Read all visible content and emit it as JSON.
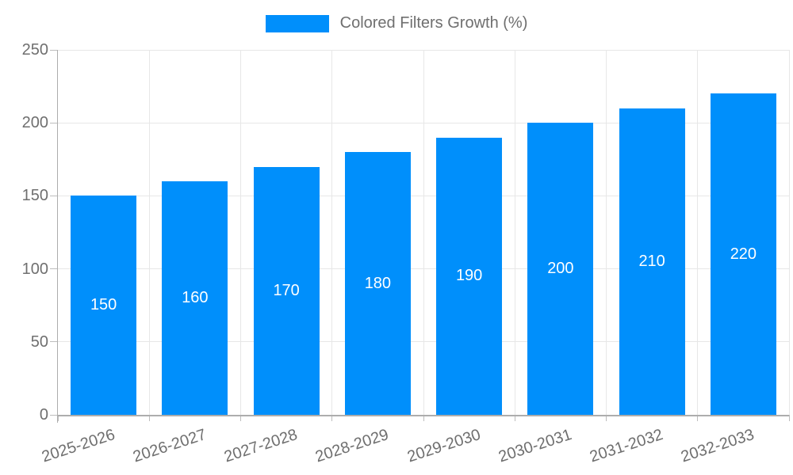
{
  "legend": {
    "label": "Colored Filters Growth (%)"
  },
  "colors": {
    "bar": "#008FFB",
    "grid": "#e7e7e7",
    "axis": "#adadad",
    "tick": "#bdbdbd",
    "axis_text": "#6f6f6f",
    "data_label_text": "#ffffff"
  },
  "chart_data": {
    "type": "bar",
    "title": "",
    "xlabel": "",
    "ylabel": "",
    "series_name": "Colored Filters Growth (%)",
    "categories": [
      "2025-2026",
      "2026-2027",
      "2027-2028",
      "2028-2029",
      "2029-2030",
      "2030-2031",
      "2031-2032",
      "2032-2033"
    ],
    "values": [
      150,
      160,
      170,
      180,
      190,
      200,
      210,
      220
    ],
    "ylim": [
      0,
      250
    ],
    "yticks": [
      0,
      50,
      100,
      150,
      200,
      250
    ],
    "grid": "both",
    "legend_position": "top",
    "data_labels": "inside-center",
    "x_label_rotation_deg": -18
  }
}
